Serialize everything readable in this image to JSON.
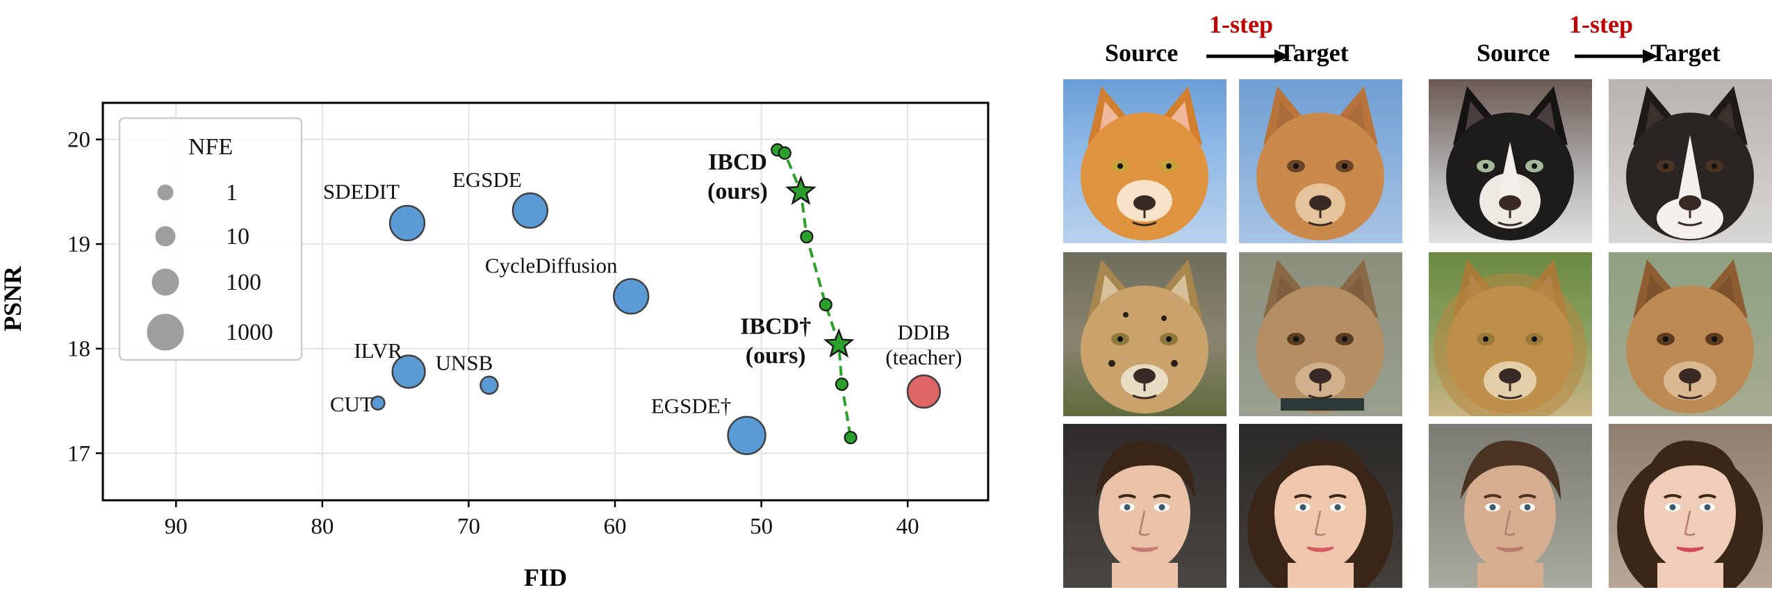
{
  "chart_data": {
    "type": "scatter",
    "xlabel": "FID",
    "ylabel": "PSNR",
    "xlim": [
      95,
      34.5
    ],
    "ylim": [
      16.55,
      20.35
    ],
    "x_inverted": true,
    "xticks": [
      90,
      80,
      70,
      60,
      50,
      40
    ],
    "yticks": [
      17,
      18,
      19,
      20
    ],
    "grid": true,
    "legend": {
      "title": "NFE",
      "placement": "upper-left",
      "entries": [
        {
          "label": "1",
          "nfe": 1
        },
        {
          "label": "10",
          "nfe": 10
        },
        {
          "label": "100",
          "nfe": 100
        },
        {
          "label": "1000",
          "nfe": 1000
        }
      ]
    },
    "colors": {
      "baseline": "#5b9bd5",
      "teacher": "#e06666",
      "ours": "#2ca02c",
      "marker_edge": "#404040",
      "curve": "#2ca02c"
    },
    "baselines": [
      {
        "label": "SDEDIT",
        "fid": 74.2,
        "psnr": 19.2,
        "nfe": 300,
        "kind": "baseline"
      },
      {
        "label": "EGSDE",
        "fid": 65.8,
        "psnr": 19.32,
        "nfe": 300,
        "kind": "baseline"
      },
      {
        "label": "CycleDiffusion",
        "fid": 58.9,
        "psnr": 18.5,
        "nfe": 300,
        "kind": "baseline"
      },
      {
        "label": "ILVR",
        "fid": 74.1,
        "psnr": 17.78,
        "nfe": 200,
        "kind": "baseline"
      },
      {
        "label": "CUT",
        "fid": 76.2,
        "psnr": 17.48,
        "nfe": 1,
        "kind": "baseline"
      },
      {
        "label": "UNSB",
        "fid": 68.6,
        "psnr": 17.65,
        "nfe": 5,
        "kind": "baseline"
      },
      {
        "label": "EGSDE†",
        "fid": 51.0,
        "psnr": 17.17,
        "nfe": 500,
        "kind": "baseline"
      },
      {
        "label": "DDIB\n(teacher)",
        "fid": 38.9,
        "psnr": 17.59,
        "nfe": 200,
        "kind": "teacher"
      }
    ],
    "ours_curve": [
      {
        "fid": 48.9,
        "psnr": 19.9
      },
      {
        "fid": 48.4,
        "psnr": 19.87
      },
      {
        "fid": 47.3,
        "psnr": 19.5,
        "star": true,
        "label": "IBCD\n(ours)"
      },
      {
        "fid": 46.9,
        "psnr": 19.07
      },
      {
        "fid": 45.6,
        "psnr": 18.42
      },
      {
        "fid": 44.7,
        "psnr": 18.04,
        "star": true,
        "label": "IBCD†\n(ours)"
      },
      {
        "fid": 44.5,
        "psnr": 17.66
      },
      {
        "fid": 43.9,
        "psnr": 17.15
      }
    ]
  },
  "image_grid": {
    "step_label": "1-step",
    "source_label": "Source",
    "target_label": "Target",
    "rows": [
      [
        "orange-cat",
        "dog-from-cat",
        "siamese-cat",
        "collie-dog"
      ],
      [
        "cheetah",
        "dog-from-cheetah",
        "lion",
        "dog-from-lion"
      ],
      [
        "male-face",
        "female-face",
        "male-face-2",
        "female-face-2"
      ]
    ]
  }
}
